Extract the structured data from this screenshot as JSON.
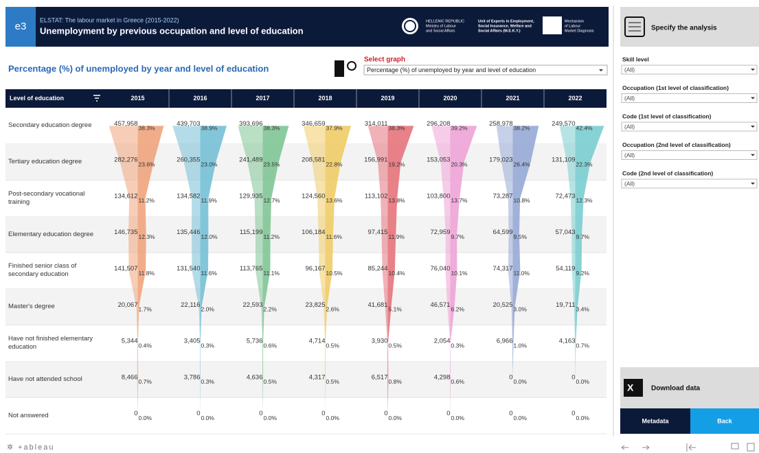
{
  "header": {
    "badge": "e3",
    "source": "ELSTAT: The labour market in Greece (2015-2022)",
    "title": "Unemployment by previous occupation and level of education",
    "logos": [
      [
        "HELLENIC REPUBLIC",
        "Ministry of Labour",
        "and Social Affairs"
      ],
      [
        "Unit of Experts in Employment,",
        "Social Insurance, Welfare and",
        "Social Affairs (M.E.K.Y.)"
      ],
      [
        "Mechanism",
        "of Labour",
        "Market Diagnosis"
      ]
    ]
  },
  "select_graph": {
    "label": "Select graph",
    "value": "Percentage (%) of unemployed by year and level of education"
  },
  "chart_data": {
    "type": "funnel",
    "title": "Percentage (%) of unemployed by year and level of education",
    "row_header": "Level of education",
    "categories": [
      "Secondary education degree",
      "Tertiary education degree",
      "Post-secondary vocational training",
      "Elementary education degree",
      "Finished senior class of secondary education",
      "Master's degree",
      "Have not finished elementary education",
      "Have not attended school",
      "Not answered"
    ],
    "series": [
      {
        "name": "2015",
        "color": "#f0a47c",
        "values": [
          457958,
          282276,
          134612,
          146735,
          141507,
          20067,
          5344,
          8466,
          0
        ],
        "value_labels": [
          "457,958",
          "282,276",
          "134,612",
          "146,735",
          "141,507",
          "20,067",
          "5,344",
          "8,466",
          "0"
        ],
        "percent": [
          38.3,
          23.6,
          11.2,
          12.3,
          11.8,
          1.7,
          0.4,
          0.7,
          0.0
        ],
        "percent_labels": [
          "38.3%",
          "23.6%",
          "11.2%",
          "12.3%",
          "11.8%",
          "1.7%",
          "0.4%",
          "0.7%",
          "0.0%"
        ]
      },
      {
        "name": "2016",
        "color": "#76c0d6",
        "values": [
          439703,
          260355,
          134582,
          135446,
          131540,
          22116,
          3405,
          3786,
          0
        ],
        "value_labels": [
          "439,703",
          "260,355",
          "134,582",
          "135,446",
          "131,540",
          "22,116",
          "3,405",
          "3,786",
          "0"
        ],
        "percent": [
          38.9,
          23.0,
          11.9,
          12.0,
          11.6,
          2.0,
          0.3,
          0.3,
          0.0
        ],
        "percent_labels": [
          "38.9%",
          "23.0%",
          "11.9%",
          "12.0%",
          "11.6%",
          "2.0%",
          "0.3%",
          "0.3%",
          "0.0%"
        ]
      },
      {
        "name": "2017",
        "color": "#80c596",
        "values": [
          393696,
          241489,
          129935,
          115199,
          113765,
          22593,
          5736,
          4636,
          0
        ],
        "value_labels": [
          "393,696",
          "241,489",
          "129,935",
          "115,199",
          "113,765",
          "22,593",
          "5,736",
          "4,636",
          "0"
        ],
        "percent": [
          38.3,
          23.5,
          12.7,
          11.2,
          11.1,
          2.2,
          0.6,
          0.5,
          0.0
        ],
        "percent_labels": [
          "38.3%",
          "23.5%",
          "12.7%",
          "11.2%",
          "11.1%",
          "2.2%",
          "0.6%",
          "0.5%",
          "0.0%"
        ]
      },
      {
        "name": "2018",
        "color": "#f0cc66",
        "values": [
          346659,
          208581,
          124560,
          106184,
          96167,
          23825,
          4714,
          4317,
          0
        ],
        "value_labels": [
          "346,659",
          "208,581",
          "124,560",
          "106,184",
          "96,167",
          "23,825",
          "4,714",
          "4,317",
          "0"
        ],
        "percent": [
          37.9,
          22.8,
          13.6,
          11.6,
          10.5,
          2.6,
          0.5,
          0.5,
          0.0
        ],
        "percent_labels": [
          "37.9%",
          "22.8%",
          "13.6%",
          "11.6%",
          "10.5%",
          "2.6%",
          "0.5%",
          "0.5%",
          "0.0%"
        ]
      },
      {
        "name": "2019",
        "color": "#e6737b",
        "values": [
          314011,
          156991,
          113102,
          97415,
          85244,
          41681,
          3930,
          6517,
          0
        ],
        "value_labels": [
          "314,011",
          "156,991",
          "113,102",
          "97,415",
          "85,244",
          "41,681",
          "3,930",
          "6,517",
          "0"
        ],
        "percent": [
          38.3,
          19.2,
          13.8,
          11.9,
          10.4,
          5.1,
          0.5,
          0.8,
          0.0
        ],
        "percent_labels": [
          "38.3%",
          "19.2%",
          "13.8%",
          "11.9%",
          "10.4%",
          "5.1%",
          "0.5%",
          "0.8%",
          "0.0%"
        ]
      },
      {
        "name": "2020",
        "color": "#eea3d6",
        "values": [
          296208,
          153053,
          103800,
          72959,
          76040,
          46571,
          2054,
          4298,
          0
        ],
        "value_labels": [
          "296,208",
          "153,053",
          "103,800",
          "72,959",
          "76,040",
          "46,571",
          "2,054",
          "4,298",
          "0"
        ],
        "percent": [
          39.2,
          20.3,
          13.7,
          9.7,
          10.1,
          6.2,
          0.3,
          0.6,
          0.0
        ],
        "percent_labels": [
          "39.2%",
          "20.3%",
          "13.7%",
          "9.7%",
          "10.1%",
          "6.2%",
          "0.3%",
          "0.6%",
          "0.0%"
        ]
      },
      {
        "name": "2021",
        "color": "#97aad6",
        "values": [
          258978,
          179023,
          73287,
          64599,
          74317,
          20525,
          6966,
          0,
          0
        ],
        "value_labels": [
          "258,978",
          "179,023",
          "73,287",
          "64,599",
          "74,317",
          "20,525",
          "6,966",
          "0",
          "0"
        ],
        "percent": [
          38.2,
          26.4,
          10.8,
          9.5,
          11.0,
          3.0,
          1.0,
          0.0,
          0.0
        ],
        "percent_labels": [
          "38.2%",
          "26.4%",
          "10.8%",
          "9.5%",
          "11.0%",
          "3.0%",
          "1.0%",
          "0.0%",
          "0.0%"
        ]
      },
      {
        "name": "2022",
        "color": "#7acdd0",
        "values": [
          249570,
          131109,
          72473,
          57043,
          54119,
          19711,
          4163,
          0,
          0
        ],
        "value_labels": [
          "249,570",
          "131,109",
          "72,473",
          "57,043",
          "54,119",
          "19,711",
          "4,163",
          "0",
          "0"
        ],
        "percent": [
          42.4,
          22.3,
          12.3,
          9.7,
          9.2,
          3.4,
          0.7,
          0.0,
          0.0
        ],
        "percent_labels": [
          "42.4%",
          "22.3%",
          "12.3%",
          "9.7%",
          "9.2%",
          "3.4%",
          "0.7%",
          "0.0%",
          "0.0%"
        ]
      }
    ]
  },
  "sidebar": {
    "title": "Specify the analysis",
    "filters": [
      {
        "label": "Skill level",
        "value": "(All)"
      },
      {
        "label": "Occupation (1st level of classification)",
        "value": "(All)"
      },
      {
        "label": "Code (1st level of classification)",
        "value": "(All)"
      },
      {
        "label": "Occupation (2nd level of classification)",
        "value": "(All)"
      },
      {
        "label": "Code (2nd level of classification)",
        "value": "(All)"
      }
    ],
    "download": "Download data",
    "metadata": "Metadata",
    "back": "Back"
  },
  "footer": {
    "logo": "+ableau"
  }
}
